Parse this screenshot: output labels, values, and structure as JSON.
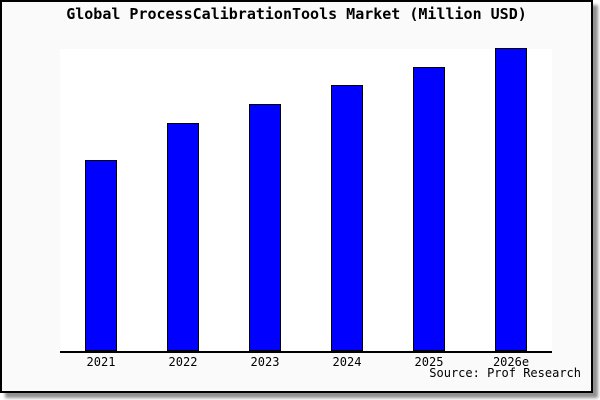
{
  "title": "Global ProcessCalibrationTools Market (Million USD)",
  "source_text": "Source: Prof Research",
  "colors": {
    "bar_fill": "#0000ff",
    "bar_edge": "#000000",
    "figure_background": "#fafafa",
    "plot_background": "#ffffff",
    "box_border": "#000000",
    "shadow": "#909090",
    "axis_line": "#000000",
    "text": "#000000"
  },
  "chart_data": {
    "type": "bar",
    "title": "Global ProcessCalibrationTools Market (Million USD)",
    "categories": [
      "2021",
      "2022",
      "2023",
      "2024",
      "2025",
      "2026e"
    ],
    "values": [
      62.8,
      75.1,
      81.4,
      87.7,
      93.7,
      100
    ],
    "xlabel": "",
    "ylabel": "",
    "ylim": [
      0,
      100.3
    ],
    "y_axis_tick_labels_visible": false,
    "grid": false,
    "legend": false,
    "annotation": "Source: Prof Research",
    "bar_color": "#0000ff",
    "bar_edge_color": "#000000"
  }
}
